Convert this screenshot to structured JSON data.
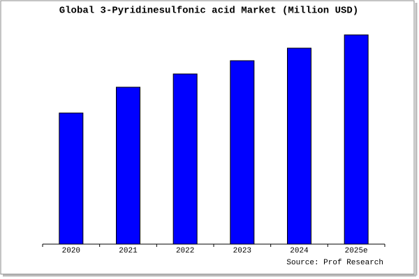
{
  "chart_data": {
    "type": "bar",
    "title": "Global 3-Pyridinesulfonic acid Market (Million USD)",
    "categories": [
      "2020",
      "2021",
      "2022",
      "2023",
      "2024",
      "2025e"
    ],
    "values": [
      188,
      225,
      244,
      263,
      281,
      300
    ],
    "color": "#0000ff",
    "ylim": [
      0,
      302
    ],
    "source": "Source: Prof Research"
  }
}
